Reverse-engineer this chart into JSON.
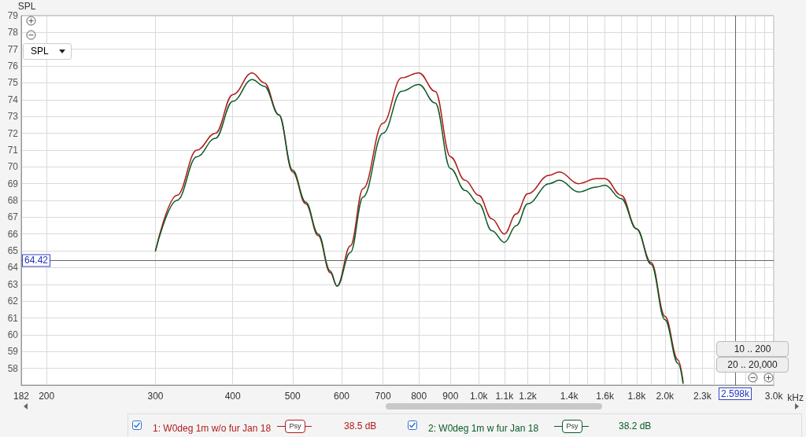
{
  "chart_data": {
    "type": "line",
    "ylabel": "SPL",
    "log": "x",
    "grid": true,
    "legend": "bottom",
    "marker": "none",
    "line_style": "solid",
    "xlim": [
      182,
      3000
    ],
    "ylim": [
      57,
      79
    ],
    "xticks": [
      182,
      200,
      300,
      400,
      500,
      600,
      700,
      800,
      900,
      {
        "value": 1000,
        "label": "1.0k"
      },
      {
        "value": 1100,
        "label": "1.1k"
      },
      {
        "value": 1200,
        "label": "1.2k"
      },
      {
        "value": 1300,
        "label": null
      },
      {
        "value": 1400,
        "label": "1.4k"
      },
      {
        "value": 1500,
        "label": null
      },
      {
        "value": 1600,
        "label": "1.6k"
      },
      {
        "value": 1700,
        "label": null
      },
      {
        "value": 1800,
        "label": "1.8k"
      },
      {
        "value": 1900,
        "label": null
      },
      {
        "value": 2000,
        "label": "2.0k"
      },
      {
        "value": 2100,
        "label": null
      },
      {
        "value": 2200,
        "label": null
      },
      {
        "value": 2300,
        "label": "2.3k"
      },
      {
        "value": 2400,
        "label": null
      },
      {
        "value": 2500,
        "label": null
      },
      {
        "value": 2600,
        "label": null
      },
      {
        "value": 2700,
        "label": null
      },
      {
        "value": 2800,
        "label": null
      },
      {
        "value": 2900,
        "label": null
      },
      {
        "value": 3000,
        "label": "3.0k"
      }
    ],
    "xlabel": "kHz",
    "yticks": [
      58,
      59,
      60,
      61,
      62,
      63,
      64,
      65,
      66,
      67,
      68,
      69,
      70,
      71,
      72,
      73,
      74,
      75,
      76,
      77,
      78,
      79
    ],
    "x": [
      300,
      325,
      350,
      375,
      400,
      430,
      450,
      475,
      500,
      525,
      550,
      575,
      590,
      620,
      650,
      700,
      750,
      800,
      850,
      900,
      950,
      1000,
      1050,
      1100,
      1150,
      1200,
      1300,
      1350,
      1450,
      1550,
      1600,
      1700,
      1800,
      1900,
      2000,
      2100,
      2140
    ],
    "series": [
      {
        "name": "1: W0deg 1m w/o fur Jan 18",
        "color": "#b01c1c",
        "values": [
          65.0,
          68.3,
          71.0,
          72.0,
          74.3,
          75.6,
          75.0,
          73.1,
          69.7,
          67.8,
          65.9,
          63.7,
          62.9,
          65.3,
          68.7,
          72.6,
          75.3,
          75.6,
          74.5,
          70.6,
          69.2,
          68.3,
          66.9,
          66.0,
          67.2,
          68.4,
          69.5,
          69.7,
          69.0,
          69.3,
          69.3,
          68.3,
          66.3,
          64.3,
          61.1,
          58.5,
          57.2
        ]
      },
      {
        "name": "2: W0deg 1m w fur Jan 18",
        "color": "#0b5a26",
        "values": [
          65.0,
          68.0,
          70.6,
          71.7,
          73.9,
          75.2,
          74.8,
          73.1,
          69.8,
          67.9,
          66.0,
          63.8,
          62.9,
          64.9,
          68.2,
          72.0,
          74.5,
          74.9,
          73.8,
          69.9,
          68.6,
          67.8,
          66.2,
          65.5,
          66.5,
          67.8,
          69.0,
          69.2,
          68.5,
          68.8,
          68.9,
          68.1,
          66.3,
          64.2,
          60.9,
          58.3,
          57.1
        ]
      }
    ],
    "ref_lines": [
      {
        "axis": "y",
        "value": 64.42,
        "label": "64.42",
        "color": "#666666"
      },
      {
        "axis": "x",
        "value": 2598,
        "label": "2.598k",
        "color": "#666666"
      }
    ],
    "annotations": [
      "SPL",
      "10 .. 200",
      "20 .. 20,000",
      "Psy",
      "38.5 dB",
      "Psy",
      "38.2 dB"
    ]
  }
}
